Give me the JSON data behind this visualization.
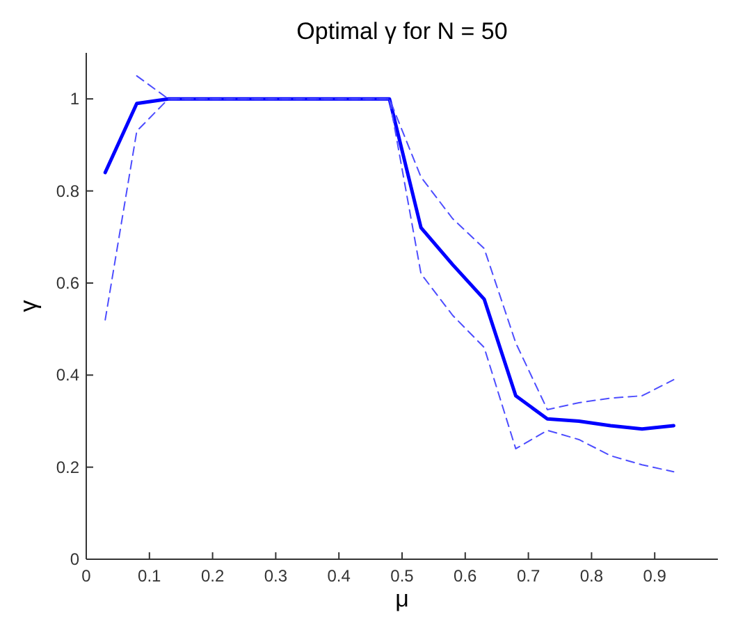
{
  "chart_data": {
    "type": "line",
    "title": "Optimal γ for N = 50",
    "xlabel": "μ",
    "ylabel": "γ",
    "x": [
      0.03,
      0.08,
      0.13,
      0.18,
      0.23,
      0.28,
      0.33,
      0.38,
      0.43,
      0.48,
      0.53,
      0.58,
      0.63,
      0.68,
      0.73,
      0.78,
      0.83,
      0.88,
      0.93
    ],
    "series": [
      {
        "color": "#0000ff",
        "line_style": "solid",
        "values": [
          0.84,
          0.99,
          1.0,
          1.0,
          1.0,
          1.0,
          1.0,
          1.0,
          1.0,
          1.0,
          0.72,
          0.64,
          0.565,
          0.355,
          0.305,
          0.3,
          0.29,
          0.283,
          0.29
        ]
      },
      {
        "color": "#4d4dff",
        "line_style": "dashed",
        "values": [
          null,
          1.05,
          1.0,
          1.0,
          1.0,
          1.0,
          1.0,
          1.0,
          1.0,
          1.0,
          0.83,
          0.74,
          0.675,
          0.47,
          0.325,
          0.34,
          0.35,
          0.355,
          0.39
        ]
      },
      {
        "color": "#4d4dff",
        "line_style": "dashed",
        "values": [
          0.52,
          0.93,
          1.0,
          1.0,
          1.0,
          1.0,
          1.0,
          1.0,
          1.0,
          1.0,
          0.62,
          0.53,
          0.46,
          0.24,
          0.28,
          0.26,
          0.225,
          0.205,
          0.19
        ]
      }
    ],
    "xlim": [
      0,
      1
    ],
    "ylim": [
      0,
      1.1
    ],
    "xticks": [
      0,
      0.1,
      0.2,
      0.3,
      0.4,
      0.5,
      0.6,
      0.7,
      0.8,
      0.9
    ],
    "yticks": [
      0,
      0.2,
      0.4,
      0.6,
      0.8,
      1
    ],
    "grid": false
  }
}
